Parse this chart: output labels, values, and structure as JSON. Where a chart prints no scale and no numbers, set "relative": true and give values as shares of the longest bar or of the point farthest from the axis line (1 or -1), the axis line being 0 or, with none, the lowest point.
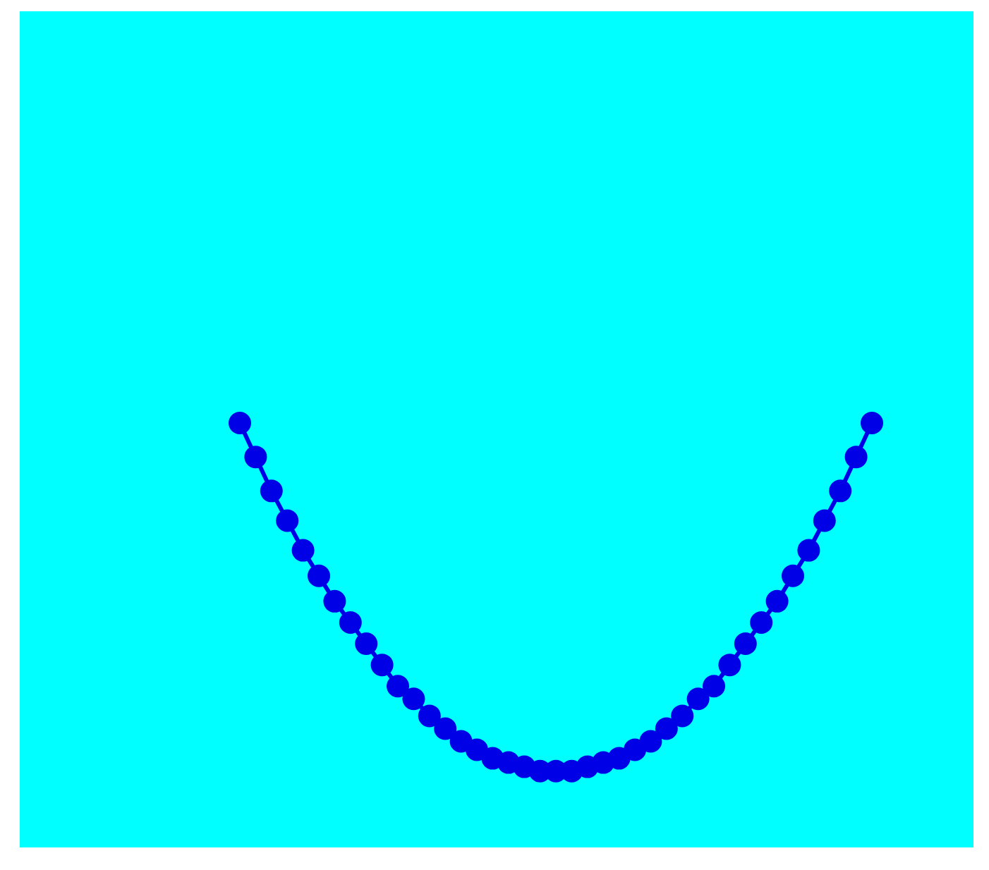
{
  "chart_data": {
    "type": "line",
    "relative": true,
    "marker": "circle",
    "categories": [
      null,
      null,
      null,
      null,
      null,
      null,
      null,
      null,
      null,
      null,
      null,
      null,
      null,
      null,
      null,
      null,
      null,
      null,
      null,
      null,
      null,
      null,
      null,
      null,
      null,
      null,
      null,
      null,
      null,
      null,
      null,
      null,
      null,
      null,
      null,
      null,
      null,
      null,
      null,
      null,
      null
    ],
    "series": [
      {
        "color": "#0000e6",
        "values": [
          1,
          0.92,
          0.84,
          0.77,
          0.7,
          0.64,
          0.58,
          0.53,
          0.48,
          0.43,
          0.38,
          0.35,
          0.31,
          0.28,
          0.25,
          0.23,
          0.21,
          0.2,
          0.19,
          0.18,
          0.18,
          0.18,
          0.19,
          0.2,
          0.21,
          0.23,
          0.25,
          0.28,
          0.31,
          0.35,
          0.38,
          0.43,
          0.48,
          0.53,
          0.58,
          0.64,
          0.7,
          0.77,
          0.84,
          0.92,
          1
        ]
      }
    ]
  }
}
